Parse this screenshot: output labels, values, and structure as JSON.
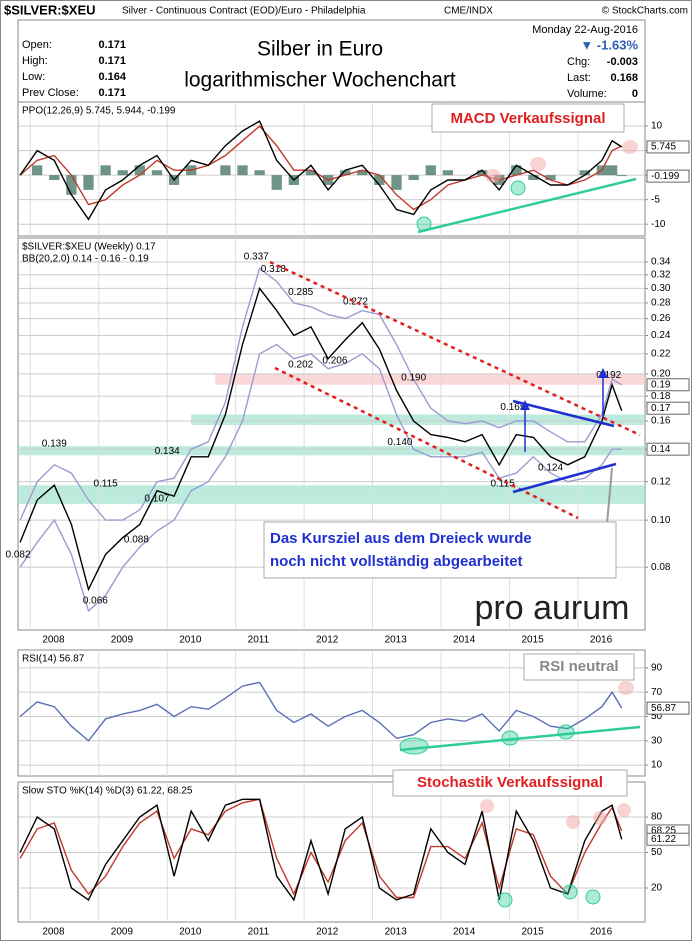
{
  "header": {
    "symbol": "$SILVER:$XEU",
    "description": "Silver - Continuous Contract (EOD)/Euro - Philadelphia",
    "exchange": "CME/INDX",
    "copyright": "© StockCharts.com",
    "date": "Monday  22-Aug-2016",
    "change_pct": "▼ -1.63%",
    "quote_left": [
      [
        "Open:",
        "0.171"
      ],
      [
        "High:",
        "0.171"
      ],
      [
        "Low:",
        "0.164"
      ],
      [
        "Prev Close:",
        "0.171"
      ]
    ],
    "quote_right": [
      [
        "Chg:",
        "-0.003"
      ],
      [
        "Last:",
        "0.168"
      ],
      [
        "Volume:",
        "0"
      ]
    ]
  },
  "overlay": {
    "title": [
      "Silber in Euro",
      "logarithmischer Wochenchart"
    ],
    "macd_note": "MACD Verkaufssignal",
    "target_note": [
      "Das Kursziel aus dem Dreieck wurde",
      "noch nicht vollständig abgearbeitet"
    ],
    "rsi_note": "RSI neutral",
    "sto_note": "Stochastik Verkaufssignal",
    "logo": "pro aurum"
  },
  "chart_data": [
    {
      "type": "line",
      "labels": [
        "PPO(12,26,9) 5.745, 5.944, -0.199"
      ],
      "x": [
        2007.85,
        2008.1,
        2008.35,
        2008.6,
        2008.85,
        2009.1,
        2009.35,
        2009.6,
        2009.85,
        2010.1,
        2010.35,
        2010.6,
        2010.85,
        2011.1,
        2011.35,
        2011.6,
        2011.85,
        2012.1,
        2012.35,
        2012.6,
        2012.85,
        2013.1,
        2013.35,
        2013.6,
        2013.85,
        2014.1,
        2014.35,
        2014.6,
        2014.85,
        2015.1,
        2015.35,
        2015.6,
        2015.85,
        2016.1,
        2016.35,
        2016.5,
        2016.64
      ],
      "series": [
        {
          "kind": "bar",
          "color": "#3d6f5f",
          "values": [
            0,
            2,
            -1,
            -4,
            -3,
            2,
            1,
            2,
            1,
            -2,
            2,
            0,
            2,
            2,
            1,
            -3,
            -2,
            1,
            -2,
            1,
            1,
            -2,
            -3,
            -1,
            2,
            1,
            0,
            1,
            -2,
            2,
            -1,
            -1,
            0,
            1,
            2,
            2,
            -0.199
          ]
        },
        {
          "color": "#c0392b",
          "values": [
            0,
            3,
            4,
            0,
            -6,
            -5,
            -2,
            0,
            3,
            1,
            1,
            2,
            4,
            7,
            10,
            6,
            1,
            1,
            -1,
            0,
            1,
            0,
            -4,
            -7,
            -5,
            -2,
            -1,
            0,
            -1,
            0,
            1,
            -1,
            -2,
            -1,
            1,
            5,
            5.944
          ]
        },
        {
          "color": "#000000",
          "values": [
            0,
            5,
            3,
            -4,
            -9,
            -3,
            -1,
            2,
            4,
            -1,
            3,
            2,
            6,
            9,
            11,
            3,
            -1,
            2,
            -3,
            1,
            2,
            -2,
            -7,
            -8,
            -3,
            -1,
            -1,
            1,
            -3,
            2,
            0,
            -2,
            -2,
            0,
            3,
            7,
            5.745
          ]
        }
      ],
      "xlim": [
        2007.82,
        2016.98
      ],
      "xticks": [
        2008,
        2009,
        2010,
        2011,
        2012,
        2013,
        2014,
        2015,
        2016
      ],
      "show_xlabels": false,
      "ylim": [
        -12.4,
        14.9
      ],
      "yticks": [
        -10,
        -5,
        0,
        5,
        10
      ],
      "grid": true,
      "tags": [
        {
          "value": 5.745
        },
        {
          "value": -0.199
        }
      ]
    },
    {
      "type": "line",
      "log": true,
      "labels": [
        "$SILVER:$XEU (Weekly) 0.17",
        "BB(20,2.0) 0.14 - 0.16 - 0.19"
      ],
      "x": [
        2007.85,
        2008.1,
        2008.35,
        2008.6,
        2008.85,
        2009.1,
        2009.35,
        2009.6,
        2009.85,
        2010.1,
        2010.35,
        2010.6,
        2010.85,
        2011.1,
        2011.35,
        2011.6,
        2011.85,
        2012.1,
        2012.35,
        2012.6,
        2012.85,
        2013.1,
        2013.35,
        2013.6,
        2013.85,
        2014.1,
        2014.35,
        2014.6,
        2014.85,
        2015.1,
        2015.35,
        2015.6,
        2015.85,
        2016.1,
        2016.35,
        2016.5,
        2016.64
      ],
      "series": [
        {
          "color": "#9b9bd0",
          "values": [
            0.1,
            0.12,
            0.13,
            0.125,
            0.11,
            0.1,
            0.1,
            0.105,
            0.12,
            0.122,
            0.14,
            0.145,
            0.175,
            0.25,
            0.33,
            0.31,
            0.28,
            0.275,
            0.265,
            0.26,
            0.27,
            0.265,
            0.23,
            0.195,
            0.17,
            0.16,
            0.158,
            0.16,
            0.155,
            0.16,
            0.16,
            0.152,
            0.145,
            0.145,
            0.165,
            0.195,
            0.19
          ]
        },
        {
          "color": "#9b9bd0",
          "values": [
            0.08,
            0.09,
            0.1,
            0.085,
            0.065,
            0.07,
            0.08,
            0.088,
            0.095,
            0.1,
            0.115,
            0.12,
            0.135,
            0.16,
            0.22,
            0.23,
            0.215,
            0.22,
            0.205,
            0.21,
            0.22,
            0.205,
            0.165,
            0.14,
            0.135,
            0.135,
            0.135,
            0.138,
            0.122,
            0.125,
            0.135,
            0.125,
            0.12,
            0.122,
            0.13,
            0.14,
            0.14
          ]
        },
        {
          "color": "#000000",
          "values": [
            0.09,
            0.11,
            0.118,
            0.098,
            0.072,
            0.085,
            0.092,
            0.098,
            0.115,
            0.112,
            0.135,
            0.135,
            0.165,
            0.23,
            0.3,
            0.27,
            0.24,
            0.25,
            0.215,
            0.235,
            0.255,
            0.225,
            0.185,
            0.16,
            0.15,
            0.148,
            0.145,
            0.15,
            0.13,
            0.15,
            0.148,
            0.135,
            0.13,
            0.135,
            0.16,
            0.19,
            0.168
          ]
        }
      ],
      "xlim": [
        2007.82,
        2016.98
      ],
      "xticks": [
        2008,
        2009,
        2010,
        2011,
        2012,
        2013,
        2014,
        2015,
        2016
      ],
      "show_xlabels": true,
      "ylim": [
        0.0594,
        0.381
      ],
      "yticks": [
        {
          "value": 0.08,
          "label": "0.08"
        },
        {
          "value": 0.1,
          "label": "0.10"
        },
        0.12,
        0.14,
        0.16,
        0.18,
        {
          "value": 0.2,
          "label": "0.20"
        },
        0.22,
        0.24,
        0.26,
        0.28,
        {
          "value": 0.3,
          "label": "0.30"
        },
        0.32,
        0.34
      ],
      "grid": true,
      "zones": [
        {
          "from": 0.19,
          "to": 0.2,
          "x0": 2010.7,
          "color": "#f8c8c8"
        },
        {
          "from": 0.157,
          "to": 0.165,
          "x0": 2010.35,
          "color": "#9fe3cf"
        },
        {
          "from": 0.136,
          "to": 0.142,
          "x0": 2007.82,
          "color": "#9fe3cf"
        },
        {
          "from": 0.108,
          "to": 0.118,
          "x0": 2007.82,
          "color": "#9fe3cf"
        }
      ],
      "points": [
        {
          "x": 2011.3,
          "y": 0.337
        },
        {
          "x": 2011.55,
          "y": 0.318
        },
        {
          "x": 2011.95,
          "y": 0.285
        },
        {
          "x": 2012.75,
          "y": 0.272
        },
        {
          "x": 2011.95,
          "y": 0.202
        },
        {
          "x": 2012.45,
          "y": 0.206
        },
        {
          "x": 2013.6,
          "y": 0.19,
          "label": "0.190"
        },
        {
          "x": 2015.05,
          "y": 0.165
        },
        {
          "x": 2016.45,
          "y": 0.192
        },
        {
          "x": 2013.4,
          "y": 0.14,
          "label": "0.140"
        },
        {
          "x": 2010.0,
          "y": 0.134
        },
        {
          "x": 2008.35,
          "y": 0.139
        },
        {
          "x": 2009.1,
          "y": 0.115
        },
        {
          "x": 2009.85,
          "y": 0.107
        },
        {
          "x": 2009.55,
          "y": 0.088
        },
        {
          "x": 2007.82,
          "y": 0.082
        },
        {
          "x": 2008.95,
          "y": 0.066
        },
        {
          "x": 2014.9,
          "y": 0.115
        },
        {
          "x": 2015.6,
          "y": 0.124
        }
      ],
      "tags": [
        {
          "value": 0.19
        },
        {
          "value": 0.17
        },
        {
          "value": 0.14
        }
      ]
    },
    {
      "type": "line",
      "labels": [
        "RSI(14) 56.87"
      ],
      "x": [
        2007.85,
        2008.1,
        2008.35,
        2008.6,
        2008.85,
        2009.1,
        2009.35,
        2009.6,
        2009.85,
        2010.1,
        2010.35,
        2010.6,
        2010.85,
        2011.1,
        2011.35,
        2011.6,
        2011.85,
        2012.1,
        2012.35,
        2012.6,
        2012.85,
        2013.1,
        2013.35,
        2013.6,
        2013.85,
        2014.1,
        2014.35,
        2014.6,
        2014.85,
        2015.1,
        2015.35,
        2015.6,
        2015.85,
        2016.1,
        2016.35,
        2016.5,
        2016.64
      ],
      "series": [
        {
          "color": "#5b6fb5",
          "values": [
            50,
            62,
            58,
            42,
            30,
            48,
            52,
            55,
            60,
            50,
            58,
            56,
            65,
            75,
            78,
            55,
            45,
            52,
            42,
            50,
            55,
            45,
            32,
            35,
            45,
            48,
            46,
            52,
            38,
            55,
            50,
            42,
            40,
            48,
            58,
            70,
            56.87
          ]
        }
      ],
      "xlim": [
        2007.82,
        2016.98
      ],
      "xticks": [
        2008,
        2009,
        2010,
        2011,
        2012,
        2013,
        2014,
        2015,
        2016
      ],
      "show_xlabels": false,
      "ylim": [
        1,
        104.7
      ],
      "yticks": [
        10,
        30,
        50,
        70,
        90
      ],
      "grid": true,
      "tags": [
        {
          "value": 56.87
        }
      ]
    },
    {
      "type": "line",
      "labels": [
        "Slow STO %K(14) %D(3) 61.22, 68.25"
      ],
      "x": [
        2007.85,
        2008.1,
        2008.35,
        2008.6,
        2008.85,
        2009.1,
        2009.35,
        2009.6,
        2009.85,
        2010.1,
        2010.35,
        2010.6,
        2010.85,
        2011.1,
        2011.35,
        2011.6,
        2011.85,
        2012.1,
        2012.35,
        2012.6,
        2012.85,
        2013.1,
        2013.35,
        2013.6,
        2013.85,
        2014.1,
        2014.35,
        2014.6,
        2014.85,
        2015.1,
        2015.35,
        2015.6,
        2015.85,
        2016.1,
        2016.35,
        2016.5,
        2016.64
      ],
      "series": [
        {
          "color": "#c0392b",
          "values": [
            45,
            70,
            75,
            35,
            15,
            30,
            55,
            75,
            85,
            45,
            70,
            65,
            85,
            92,
            95,
            45,
            15,
            50,
            25,
            60,
            75,
            30,
            12,
            12,
            55,
            55,
            45,
            75,
            20,
            70,
            65,
            30,
            15,
            50,
            75,
            88,
            68.25
          ]
        },
        {
          "color": "#000000",
          "values": [
            50,
            80,
            70,
            20,
            10,
            40,
            60,
            80,
            90,
            30,
            85,
            60,
            90,
            95,
            95,
            30,
            10,
            60,
            15,
            70,
            80,
            20,
            10,
            15,
            70,
            50,
            40,
            85,
            10,
            85,
            60,
            20,
            15,
            60,
            85,
            90,
            61.22
          ]
        }
      ],
      "xlim": [
        2007.82,
        2016.98
      ],
      "xticks": [
        2008,
        2009,
        2010,
        2011,
        2012,
        2013,
        2014,
        2015,
        2016
      ],
      "show_xlabels": true,
      "ylim": [
        -8.7,
        109.6
      ],
      "yticks": [
        20,
        50,
        80
      ],
      "grid": true,
      "tags": [
        {
          "value": 68.25
        },
        {
          "value": 61.22
        }
      ]
    }
  ]
}
